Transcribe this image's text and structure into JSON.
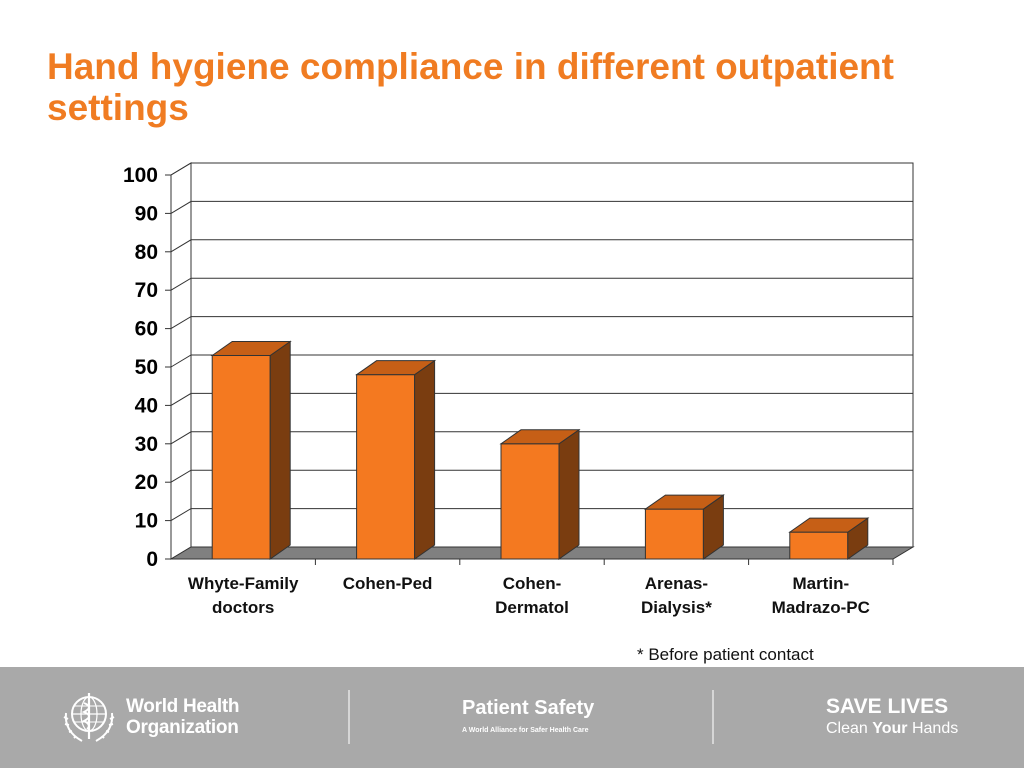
{
  "title": "Hand hygiene compliance in different outpatient settings",
  "chart_data": {
    "type": "bar",
    "categories": [
      [
        "Whyte-Family",
        "doctors"
      ],
      [
        "Cohen-Ped"
      ],
      [
        "Cohen-",
        "Dermatol"
      ],
      [
        "Arenas-",
        "Dialysis*"
      ],
      [
        "Martin-",
        "Madrazo-PC"
      ]
    ],
    "values": [
      53,
      48,
      30,
      13,
      7
    ],
    "ylim": [
      0,
      100
    ],
    "yticks": [
      0,
      10,
      20,
      30,
      40,
      50,
      60,
      70,
      80,
      90,
      100
    ],
    "xlabel": "",
    "ylabel": "",
    "grid": true,
    "legend": "none",
    "colors": {
      "bar_front": "#f47920",
      "bar_side": "#7a3d10",
      "bar_top": "#c65f16",
      "floor": "#808080"
    }
  },
  "footnote": "* Before patient contact",
  "footer": {
    "who_line1": "World Health",
    "who_line2": "Organization",
    "patient_safety_title": "Patient Safety",
    "patient_safety_subtitle": "A World Alliance for Safer Health Care",
    "save_lives_title": "SAVE LIVES",
    "save_lives_pre": "Clean ",
    "save_lives_bold": "Your",
    "save_lives_post": " Hands",
    "background": "#a9a9a9"
  }
}
